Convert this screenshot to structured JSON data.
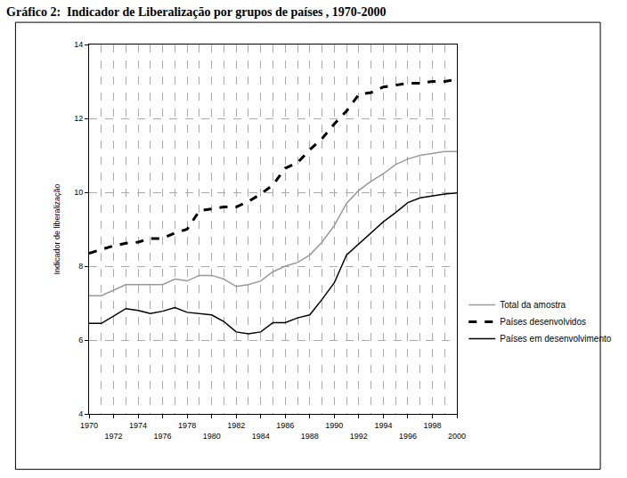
{
  "chart_data": {
    "type": "line",
    "title": "Gráfico 2:  Indicador de Liberalização por grupos de países , 1970-2000",
    "y_label": "Indicador de liberalização",
    "x": [
      1970,
      1971,
      1972,
      1973,
      1974,
      1975,
      1976,
      1977,
      1978,
      1979,
      1980,
      1981,
      1982,
      1983,
      1984,
      1985,
      1986,
      1987,
      1988,
      1989,
      1990,
      1991,
      1992,
      1993,
      1994,
      1995,
      1996,
      1997,
      1998,
      1999,
      2000
    ],
    "series": [
      {
        "name": "Total da amostra",
        "color": "#999999",
        "line_style": "solid",
        "values": [
          7.2,
          7.2,
          7.35,
          7.5,
          7.5,
          7.5,
          7.5,
          7.65,
          7.6,
          7.75,
          7.75,
          7.65,
          7.45,
          7.5,
          7.6,
          7.85,
          8.0,
          8.1,
          8.3,
          8.65,
          9.1,
          9.7,
          10.05,
          10.3,
          10.5,
          10.75,
          10.9,
          11.0,
          11.05,
          11.1,
          11.1
        ]
      },
      {
        "name": "Países desenvolvidos",
        "color": "#000000",
        "line_style": "dash",
        "values": [
          8.35,
          8.45,
          8.55,
          8.62,
          8.65,
          8.75,
          8.75,
          8.9,
          9.0,
          9.5,
          9.55,
          9.6,
          9.6,
          9.75,
          9.95,
          10.2,
          10.65,
          10.8,
          11.15,
          11.45,
          11.85,
          12.2,
          12.65,
          12.7,
          12.85,
          12.9,
          12.95,
          12.95,
          13.0,
          13.0,
          13.05
        ]
      },
      {
        "name": "Países em desenvolvimento",
        "color": "#000000",
        "line_style": "solid",
        "values": [
          6.45,
          6.45,
          6.65,
          6.85,
          6.8,
          6.72,
          6.78,
          6.88,
          6.75,
          6.72,
          6.68,
          6.5,
          6.22,
          6.17,
          6.22,
          6.47,
          6.47,
          6.6,
          6.68,
          7.1,
          7.55,
          8.3,
          8.6,
          8.9,
          9.2,
          9.45,
          9.72,
          9.85,
          9.9,
          9.95,
          9.98
        ]
      }
    ],
    "xlim": [
      1970,
      2000
    ],
    "xticks": [
      1970,
      1972,
      1974,
      1976,
      1978,
      1980,
      1982,
      1984,
      1986,
      1988,
      1990,
      1992,
      1994,
      1996,
      1998,
      2000
    ],
    "ylim": [
      4,
      14
    ],
    "yticks": [
      4,
      6,
      8,
      10,
      12,
      14
    ],
    "grid": true,
    "legend": "right"
  }
}
